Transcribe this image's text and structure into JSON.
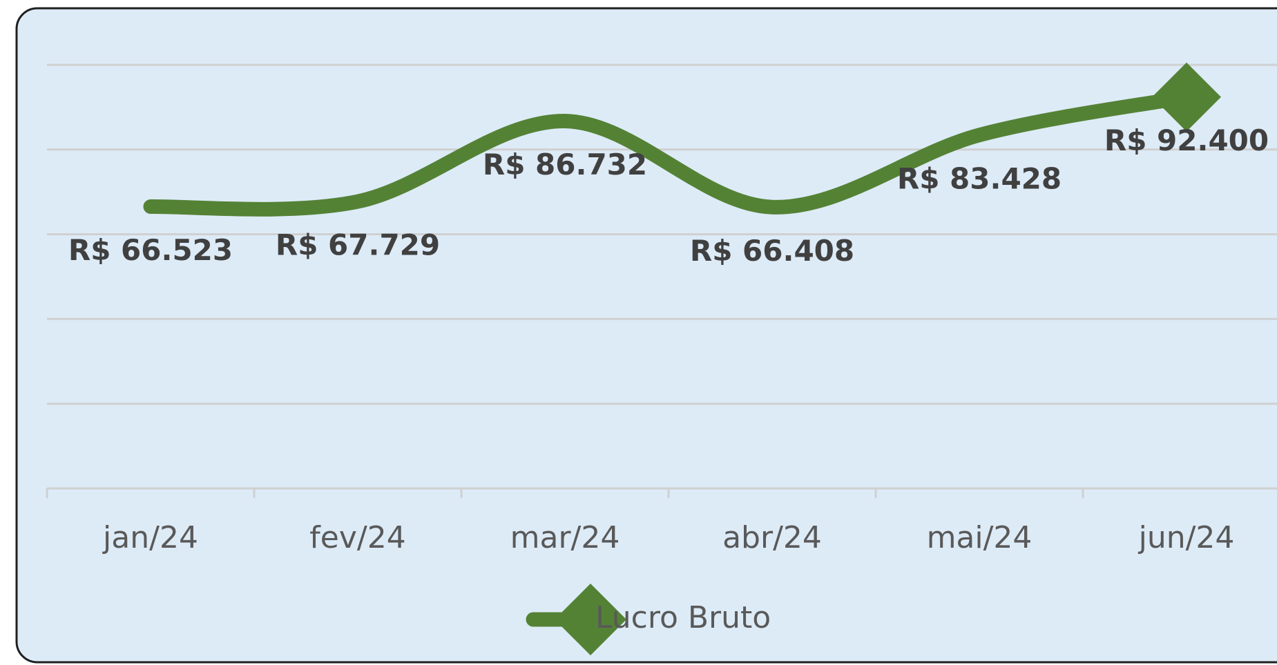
{
  "chart_data": {
    "type": "line",
    "categories": [
      "jan/24",
      "fev/24",
      "mar/24",
      "abr/24",
      "mai/24",
      "jun/24"
    ],
    "series": [
      {
        "name": "Lucro Bruto",
        "color": "#548235",
        "values": [
          66523,
          67729,
          86732,
          66408,
          83428,
          92400
        ],
        "value_labels": [
          "R$ 66.523",
          "R$ 67.729",
          "R$ 86.732",
          "R$ 66.408",
          "R$ 83.428",
          "R$ 92.400"
        ]
      }
    ],
    "ylim": [
      0,
      100000
    ],
    "yticks": [
      0,
      20000,
      40000,
      60000,
      80000,
      100000
    ],
    "grid": true,
    "legend": "bottom"
  }
}
